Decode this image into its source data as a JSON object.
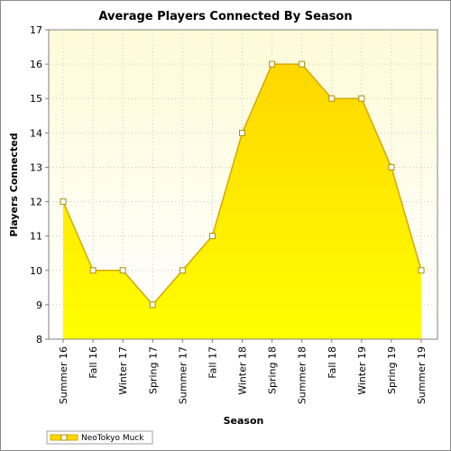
{
  "chart_data": {
    "type": "area",
    "title": "Average Players Connected By Season",
    "xlabel": "Season",
    "ylabel": "Players Connected",
    "ylim": [
      8,
      17
    ],
    "yticks": [
      8,
      9,
      10,
      11,
      12,
      13,
      14,
      15,
      16,
      17
    ],
    "grid": true,
    "legend_position": "bottom-left",
    "categories": [
      "Summer 16",
      "Fall 16",
      "Winter 17",
      "Spring 17",
      "Summer 17",
      "Fall 17",
      "Winter 18",
      "Spring 18",
      "Summer 18",
      "Fall 18",
      "Winter 19",
      "Spring 19",
      "Summer 19"
    ],
    "series": [
      {
        "name": "NeoTokyo Muck",
        "values": [
          12,
          10,
          10,
          9,
          10,
          11,
          14,
          16,
          16,
          15,
          15,
          13,
          10
        ],
        "color": "#ffd700",
        "line_color": "#d4a800"
      }
    ],
    "plot_background_top": "#fffbd8",
    "plot_background_bottom": "#ffffff"
  }
}
